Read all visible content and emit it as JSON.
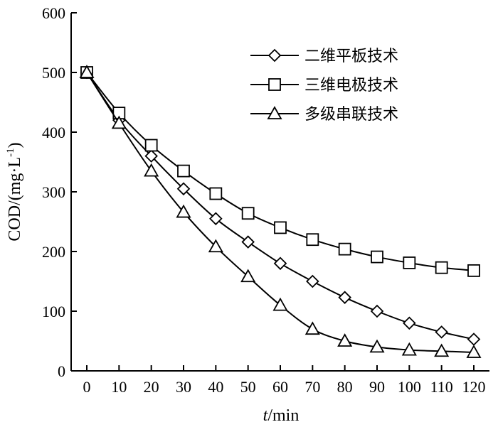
{
  "chart_data": {
    "type": "line",
    "title": "",
    "xlabel_italic": "t",
    "xlabel_rest": "/min",
    "ylabel_main": "COD/(mg·L",
    "ylabel_sup": "-1",
    "ylabel_close": ")",
    "xlim": [
      0,
      120
    ],
    "ylim": [
      0,
      600
    ],
    "x_ticks": [
      0,
      10,
      20,
      30,
      40,
      50,
      60,
      70,
      80,
      90,
      100,
      110,
      120
    ],
    "y_ticks": [
      0,
      100,
      200,
      300,
      400,
      500,
      600
    ],
    "x": [
      0,
      10,
      20,
      30,
      40,
      50,
      60,
      70,
      80,
      90,
      100,
      110,
      120
    ],
    "legend_position": "top-right",
    "grid": false,
    "series": [
      {
        "name": "二维平板技术",
        "marker": "diamond",
        "values": [
          500,
          420,
          360,
          305,
          255,
          216,
          180,
          150,
          123,
          100,
          80,
          65,
          53
        ]
      },
      {
        "name": "三维电极技术",
        "marker": "square",
        "values": [
          500,
          432,
          378,
          335,
          297,
          264,
          240,
          220,
          204,
          191,
          181,
          173,
          168
        ]
      },
      {
        "name": "多级串联技术",
        "marker": "triangle",
        "values": [
          500,
          415,
          335,
          266,
          208,
          158,
          110,
          70,
          50,
          40,
          35,
          33,
          31
        ]
      }
    ]
  }
}
